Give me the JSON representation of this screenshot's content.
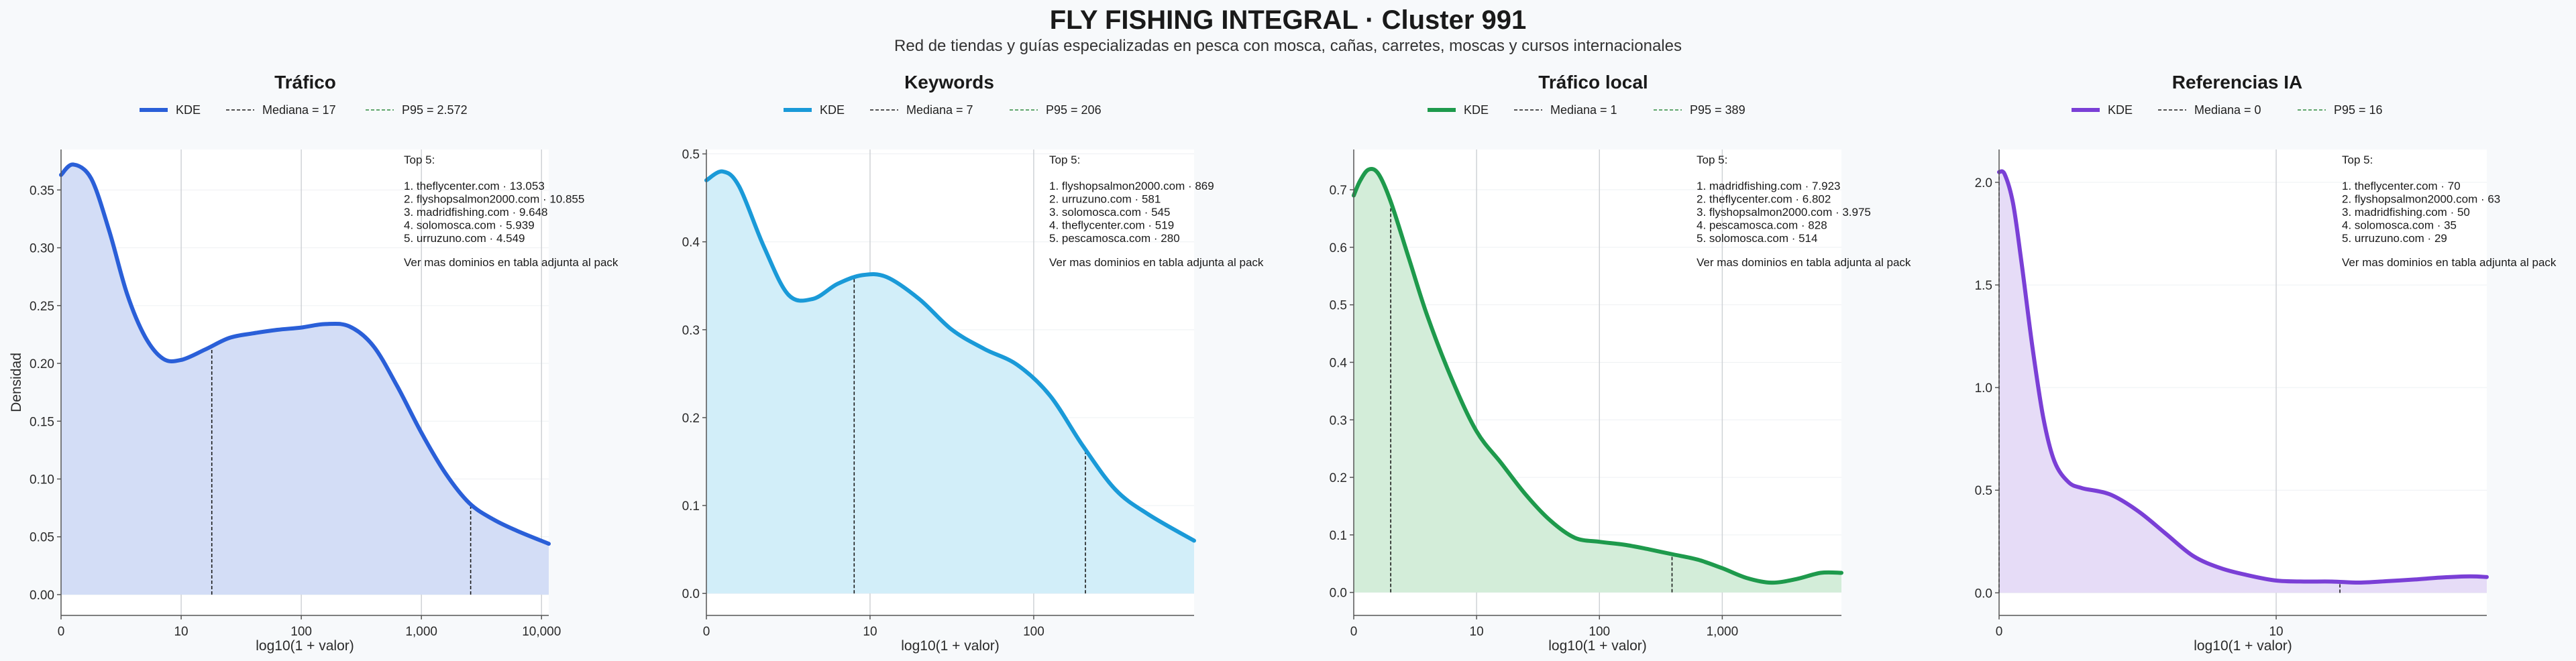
{
  "figure": {
    "title": "FLY FISHING INTEGRAL · Cluster 991",
    "subtitle": "Red de tiendas y guías especializadas en pesca con mosca, cañas, carretes, moscas y cursos internacionales"
  },
  "chart_data": [
    {
      "type": "area",
      "title": "Tráfico",
      "color": "#2a5fd8",
      "fill": "#d3ddf6",
      "xlabel": "log10(1 + valor)",
      "ylabel": "Densidad",
      "x_scale": "log10(1 + valor)",
      "xlim": [
        0,
        4.06
      ],
      "ylim": [
        -0.018,
        0.385
      ],
      "x_ticks": [
        {
          "v": 0,
          "label": "0"
        },
        {
          "v": 1,
          "label": "10"
        },
        {
          "v": 2,
          "label": "100"
        },
        {
          "v": 3,
          "label": "1,000"
        },
        {
          "v": 4,
          "label": "10,000"
        }
      ],
      "y_ticks": [
        {
          "v": 0,
          "label": "0.00"
        },
        {
          "v": 0.05,
          "label": "0.05"
        },
        {
          "v": 0.1,
          "label": "0.10"
        },
        {
          "v": 0.15,
          "label": "0.15"
        },
        {
          "v": 0.2,
          "label": "0.20"
        },
        {
          "v": 0.25,
          "label": "0.25"
        },
        {
          "v": 0.3,
          "label": "0.30"
        },
        {
          "v": 0.35,
          "label": "0.35"
        }
      ],
      "kde": {
        "x": [
          0,
          0.1,
          0.25,
          0.4,
          0.55,
          0.7,
          0.85,
          1.0,
          1.2,
          1.4,
          1.6,
          1.8,
          2.0,
          2.2,
          2.4,
          2.6,
          2.8,
          3.0,
          3.2,
          3.4,
          3.6,
          3.8,
          4.06
        ],
        "y": [
          0.363,
          0.372,
          0.36,
          0.315,
          0.26,
          0.223,
          0.204,
          0.203,
          0.212,
          0.222,
          0.226,
          0.229,
          0.231,
          0.234,
          0.232,
          0.215,
          0.18,
          0.14,
          0.105,
          0.079,
          0.065,
          0.055,
          0.044
        ]
      },
      "median": {
        "label": "Mediana = 17",
        "value": 17,
        "x": 1.255
      },
      "p95": {
        "label": "P95 = 2.572",
        "value": 2572,
        "x": 3.41
      },
      "legend": {
        "kde": "KDE",
        "median": "Mediana = 17",
        "p95": "P95 = 2.572"
      },
      "annotation": {
        "header": "Top 5:",
        "lines": [
          "1. theflycenter.com · 13.053",
          "2. flyshopsalmon2000.com · 10.855",
          "3. madridfishing.com · 9.648",
          "4. solomosca.com · 5.939",
          "5. urruzuno.com · 4.549"
        ],
        "footer": "Ver mas dominios en tabla adjunta al pack"
      }
    },
    {
      "type": "area",
      "title": "Keywords",
      "color": "#1a9ad8",
      "fill": "#d2eef9",
      "xlabel": "log10(1 + valor)",
      "ylabel": "",
      "x_scale": "log10(1 + valor)",
      "xlim": [
        0,
        2.98
      ],
      "ylim": [
        -0.025,
        0.505
      ],
      "x_ticks": [
        {
          "v": 0,
          "label": "0"
        },
        {
          "v": 1,
          "label": "10"
        },
        {
          "v": 2,
          "label": "100"
        }
      ],
      "y_ticks": [
        {
          "v": 0,
          "label": "0.0"
        },
        {
          "v": 0.1,
          "label": "0.1"
        },
        {
          "v": 0.2,
          "label": "0.2"
        },
        {
          "v": 0.3,
          "label": "0.3"
        },
        {
          "v": 0.4,
          "label": "0.4"
        },
        {
          "v": 0.5,
          "label": "0.5"
        }
      ],
      "kde": {
        "x": [
          0,
          0.1,
          0.2,
          0.35,
          0.5,
          0.65,
          0.8,
          0.95,
          1.1,
          1.3,
          1.5,
          1.7,
          1.9,
          2.1,
          2.3,
          2.5,
          2.7,
          2.98
        ],
        "y": [
          0.47,
          0.48,
          0.463,
          0.395,
          0.34,
          0.335,
          0.352,
          0.362,
          0.36,
          0.335,
          0.3,
          0.278,
          0.26,
          0.225,
          0.168,
          0.118,
          0.09,
          0.06
        ]
      },
      "median": {
        "label": "Mediana = 7",
        "value": 7,
        "x": 0.903
      },
      "p95": {
        "label": "P95 = 206",
        "value": 206,
        "x": 2.316
      },
      "legend": {
        "kde": "KDE",
        "median": "Mediana = 7",
        "p95": "P95 = 206"
      },
      "annotation": {
        "header": "Top 5:",
        "lines": [
          "1. flyshopsalmon2000.com · 869",
          "2. urruzuno.com · 581",
          "3. solomosca.com · 545",
          "4. theflycenter.com · 519",
          "5. pescamosca.com · 280"
        ],
        "footer": "Ver mas dominios en tabla adjunta al pack"
      }
    },
    {
      "type": "area",
      "title": "Tráfico local",
      "color": "#1e9a4c",
      "fill": "#d3edd9",
      "xlabel": "log10(1 + valor)",
      "ylabel": "",
      "x_scale": "log10(1 + valor)",
      "xlim": [
        0,
        3.97
      ],
      "ylim": [
        -0.04,
        0.77
      ],
      "x_ticks": [
        {
          "v": 0,
          "label": "0"
        },
        {
          "v": 1,
          "label": "10"
        },
        {
          "v": 2,
          "label": "100"
        },
        {
          "v": 3,
          "label": "1,000"
        }
      ],
      "y_ticks": [
        {
          "v": 0,
          "label": "0.0"
        },
        {
          "v": 0.1,
          "label": "0.1"
        },
        {
          "v": 0.2,
          "label": "0.2"
        },
        {
          "v": 0.3,
          "label": "0.3"
        },
        {
          "v": 0.4,
          "label": "0.4"
        },
        {
          "v": 0.5,
          "label": "0.5"
        },
        {
          "v": 0.6,
          "label": "0.6"
        },
        {
          "v": 0.7,
          "label": "0.7"
        }
      ],
      "kde": {
        "x": [
          0,
          0.05,
          0.12,
          0.2,
          0.3,
          0.45,
          0.6,
          0.8,
          1.0,
          1.2,
          1.4,
          1.6,
          1.8,
          2.0,
          2.2,
          2.4,
          2.6,
          2.8,
          3.0,
          3.2,
          3.4,
          3.6,
          3.8,
          3.97
        ],
        "y": [
          0.69,
          0.715,
          0.735,
          0.728,
          0.68,
          0.58,
          0.48,
          0.37,
          0.28,
          0.225,
          0.17,
          0.125,
          0.095,
          0.088,
          0.083,
          0.075,
          0.066,
          0.057,
          0.042,
          0.025,
          0.017,
          0.023,
          0.034,
          0.034
        ]
      },
      "median": {
        "label": "Mediana = 1",
        "value": 1,
        "x": 0.301
      },
      "p95": {
        "label": "P95 = 389",
        "value": 389,
        "x": 2.591
      },
      "legend": {
        "kde": "KDE",
        "median": "Mediana = 1",
        "p95": "P95 = 389"
      },
      "annotation": {
        "header": "Top 5:",
        "lines": [
          "1. madridfishing.com · 7.923",
          "2. theflycenter.com · 6.802",
          "3. flyshopsalmon2000.com · 3.975",
          "4. pescamosca.com · 828",
          "5. solomosca.com · 514"
        ],
        "footer": "Ver mas dominios en tabla adjunta al pack"
      }
    },
    {
      "type": "area",
      "title": "Referencias IA",
      "color": "#7a3fd6",
      "fill": "#e6dcf7",
      "xlabel": "log10(1 + valor)",
      "ylabel": "",
      "x_scale": "log10(1 + valor)",
      "xlim": [
        0,
        1.76
      ],
      "ylim": [
        -0.11,
        2.16
      ],
      "x_ticks": [
        {
          "v": 0,
          "label": "0"
        },
        {
          "v": 1,
          "label": "10"
        }
      ],
      "y_ticks": [
        {
          "v": 0,
          "label": "0.0"
        },
        {
          "v": 0.5,
          "label": "0.5"
        },
        {
          "v": 1.0,
          "label": "1.0"
        },
        {
          "v": 1.5,
          "label": "1.5"
        },
        {
          "v": 2.0,
          "label": "2.0"
        }
      ],
      "kde": {
        "x": [
          0,
          0.02,
          0.05,
          0.08,
          0.12,
          0.16,
          0.2,
          0.25,
          0.3,
          0.4,
          0.5,
          0.6,
          0.7,
          0.8,
          0.9,
          1.0,
          1.1,
          1.2,
          1.3,
          1.4,
          1.5,
          1.6,
          1.7,
          1.76
        ],
        "y": [
          2.05,
          2.04,
          1.9,
          1.62,
          1.2,
          0.85,
          0.64,
          0.54,
          0.51,
          0.48,
          0.4,
          0.29,
          0.18,
          0.12,
          0.085,
          0.06,
          0.055,
          0.055,
          0.05,
          0.057,
          0.065,
          0.075,
          0.08,
          0.077
        ]
      },
      "median": {
        "label": "Mediana = 0",
        "value": 0,
        "x": 0
      },
      "p95": {
        "label": "P95 = 16",
        "value": 16,
        "x": 1.23
      },
      "legend": {
        "kde": "KDE",
        "median": "Mediana = 0",
        "p95": "P95 = 16"
      },
      "annotation": {
        "header": "Top 5:",
        "lines": [
          "1. theflycenter.com · 70",
          "2. flyshopsalmon2000.com · 63",
          "3. madridfishing.com · 50",
          "4. solomosca.com · 35",
          "5. urruzuno.com · 29"
        ],
        "footer": "Ver mas dominios en tabla adjunta al pack"
      }
    }
  ]
}
